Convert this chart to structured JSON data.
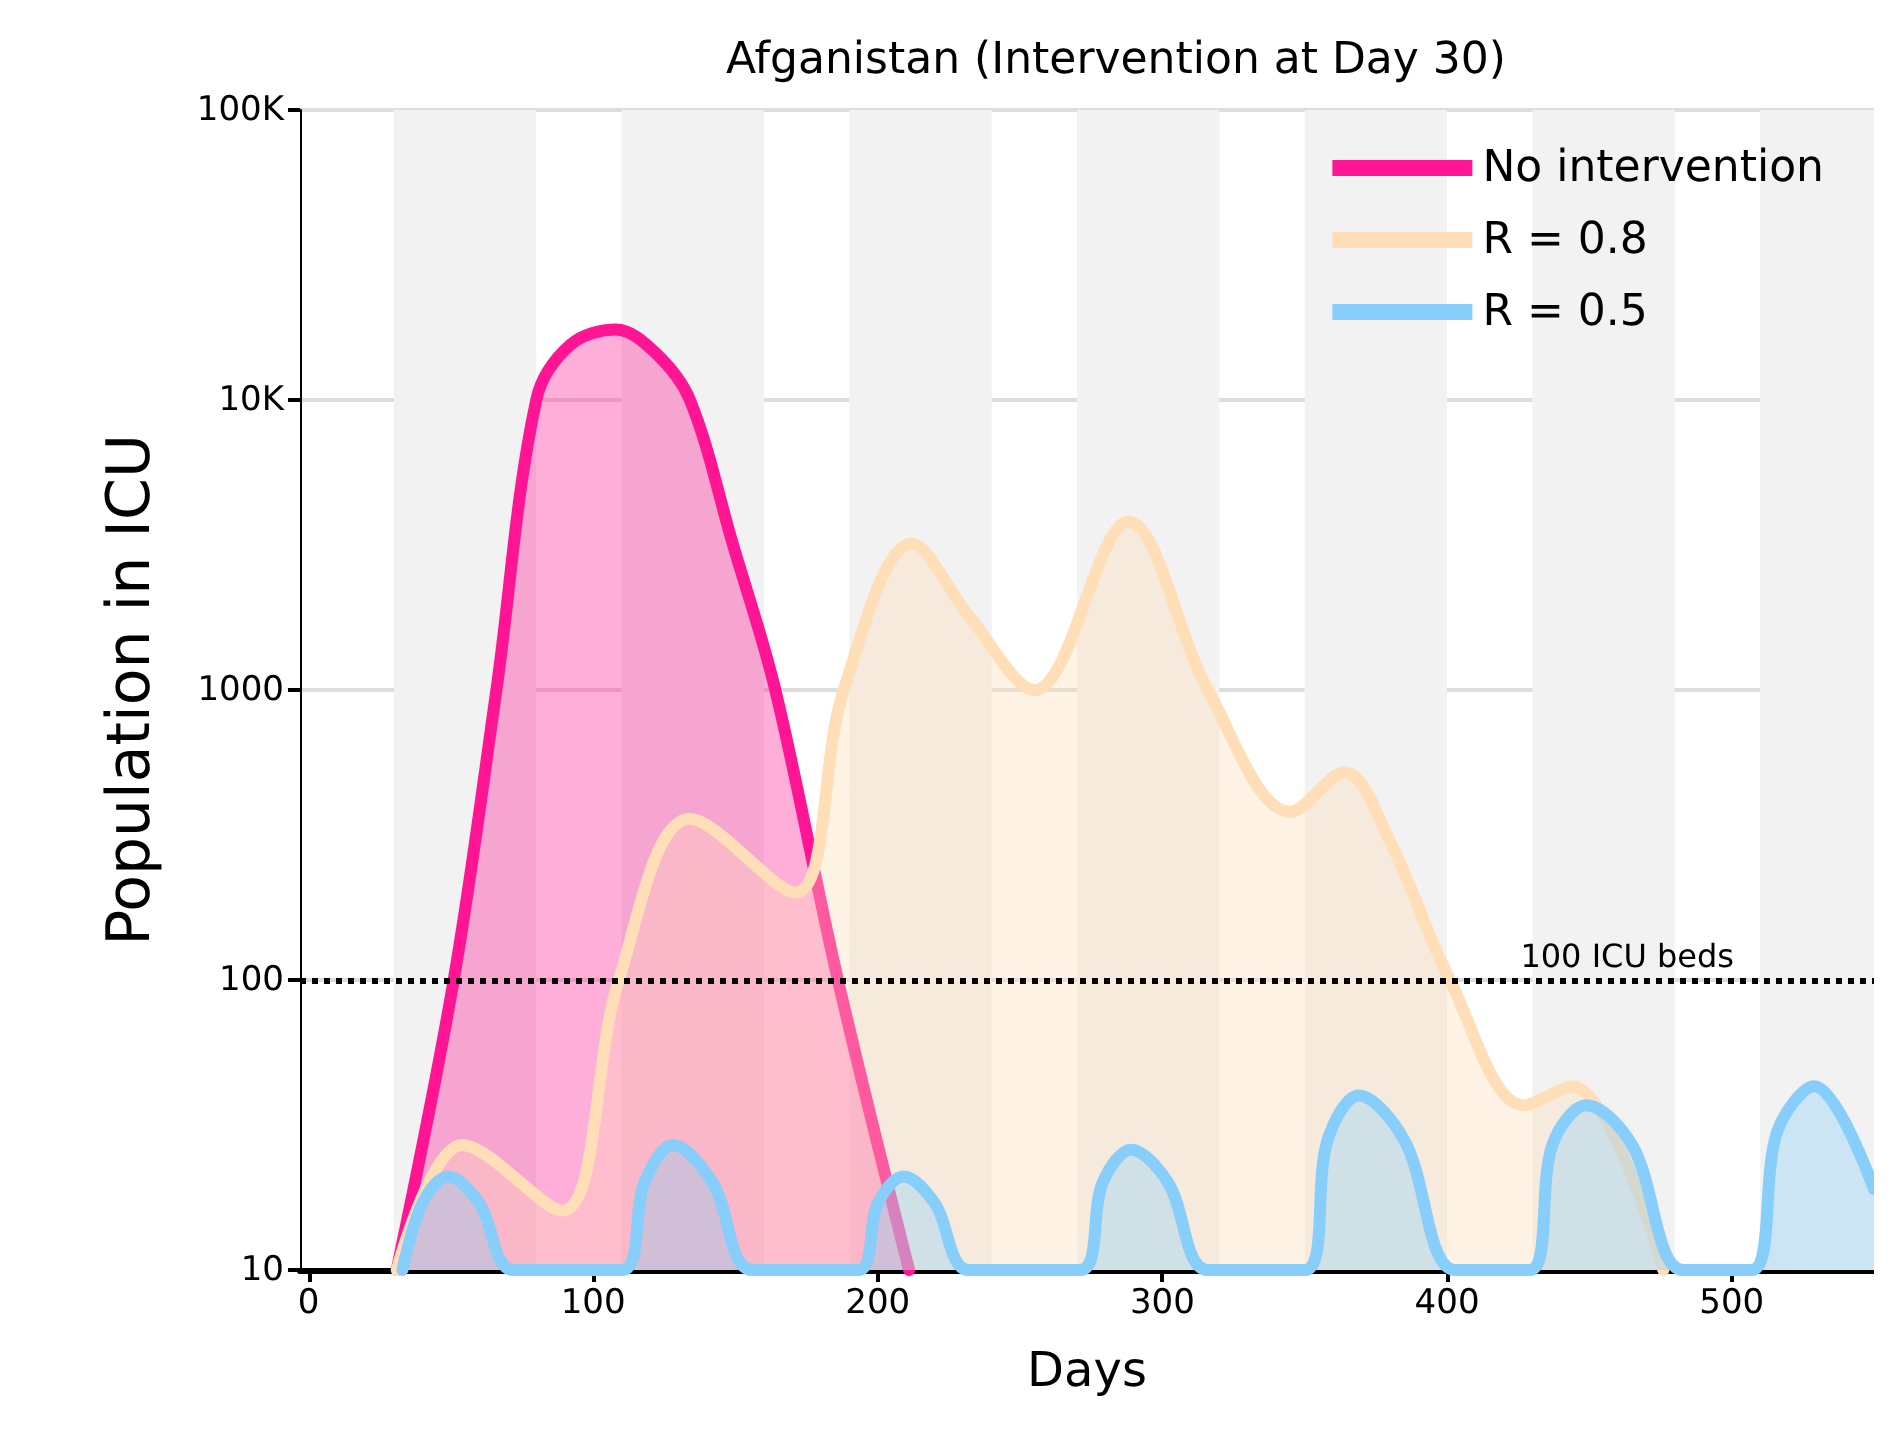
{
  "chart_data": {
    "type": "area",
    "title": "Afganistan (Intervention at Day 30)",
    "xlabel": "Days",
    "ylabel": "Population in ICU",
    "log": "y",
    "grid": "y",
    "legend": "top right",
    "line_style": "solid",
    "marker": "none",
    "xlim": [
      -3,
      550
    ],
    "xticks": [
      0,
      100,
      200,
      300,
      400,
      500
    ],
    "ylim": [
      10,
      100000
    ],
    "yticks": [
      10,
      100,
      1000,
      {
        "value": 10000,
        "label": "10K"
      },
      {
        "value": 100000,
        "label": "100K"
      }
    ],
    "series": [
      {
        "name": "No intervention",
        "color": "#ff1493",
        "x": [
          31,
          51,
          66,
          80,
          92,
          108,
          122,
          134,
          149,
          164,
          186,
          211
        ],
        "values": [
          10,
          100,
          1000,
          10000,
          15500,
          17500,
          14500,
          10000,
          3200,
          1000,
          100,
          10
        ]
      },
      {
        "name": "R = 0.8",
        "color": "#ffdeb8",
        "x": [
          31,
          54,
          89,
          109,
          134,
          171,
          188,
          212,
          232,
          255,
          288,
          316,
          345,
          364,
          380,
          401,
          427,
          444,
          476
        ],
        "values": [
          10,
          27,
          16,
          100,
          360,
          200,
          1000,
          3200,
          1800,
          1000,
          3800,
          1000,
          380,
          520,
          300,
          100,
          37,
          43,
          10
        ]
      },
      {
        "name": "R = 0.5",
        "color": "#87cefa",
        "x": [
          33,
          40,
          49,
          60,
          72,
          110,
          118,
          128,
          142,
          156,
          193,
          200,
          209,
          220,
          232,
          271,
          279,
          289,
          302,
          316,
          350,
          358,
          369,
          385,
          403,
          429,
          437,
          449,
          465,
          483,
          507,
          516,
          529,
          550
        ],
        "values": [
          10,
          17,
          21,
          17,
          10,
          10,
          20,
          27,
          20,
          10,
          10,
          17,
          21,
          17,
          10,
          10,
          20,
          26,
          20,
          10,
          10,
          28,
          40,
          28,
          10,
          10,
          27,
          37,
          27,
          10,
          10,
          30,
          43,
          19
        ]
      }
    ],
    "bands": [
      {
        "axis": "x",
        "from": 30,
        "to": 80,
        "color": "#f2f2f2"
      },
      {
        "axis": "x",
        "from": 110,
        "to": 160,
        "color": "#f2f2f2"
      },
      {
        "axis": "x",
        "from": 190,
        "to": 240,
        "color": "#f2f2f2"
      },
      {
        "axis": "x",
        "from": 270,
        "to": 320,
        "color": "#f2f2f2"
      },
      {
        "axis": "x",
        "from": 350,
        "to": 400,
        "color": "#f2f2f2"
      },
      {
        "axis": "x",
        "from": 430,
        "to": 480,
        "color": "#f2f2f2"
      },
      {
        "axis": "x",
        "from": 510,
        "to": 560,
        "color": "#f2f2f2"
      }
    ],
    "ref_lines": [
      {
        "axis": "y",
        "value": 100,
        "label": "100 ICU beds",
        "color": "#000000",
        "line_style": "dotted"
      }
    ]
  }
}
